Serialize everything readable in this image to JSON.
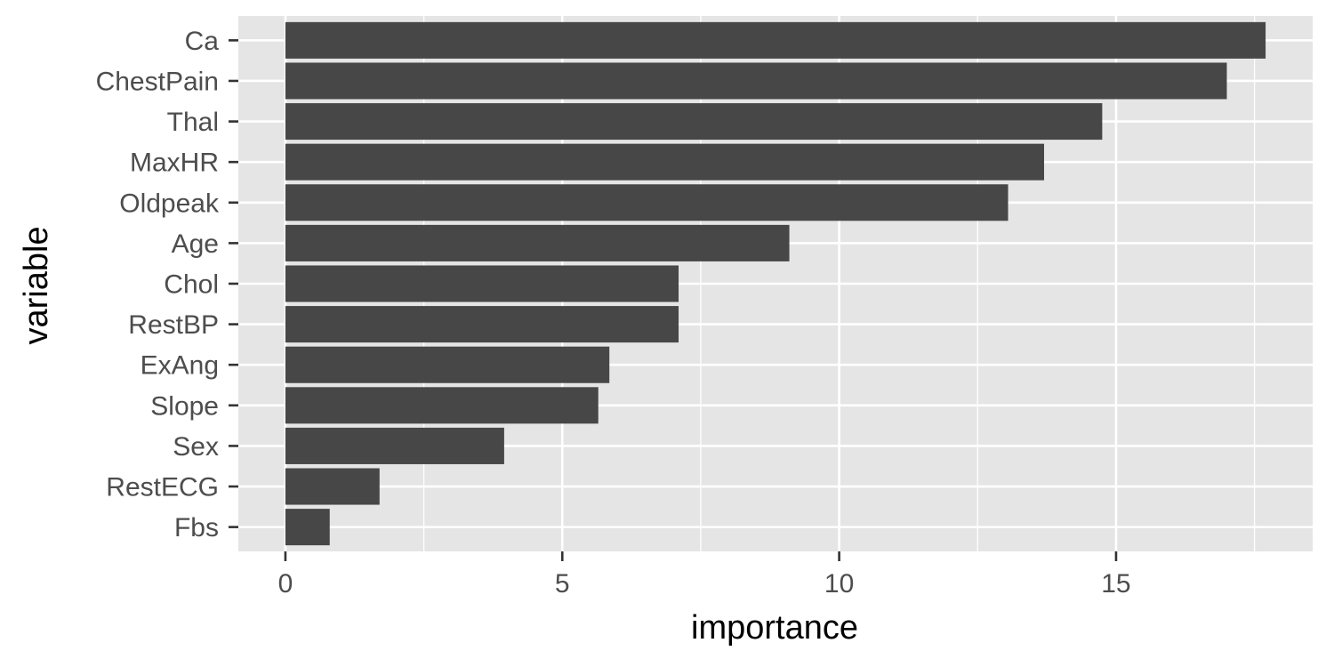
{
  "chart_data": {
    "type": "bar",
    "orientation": "horizontal",
    "title": "",
    "xlabel": "importance",
    "ylabel": "variable",
    "categories": [
      "Ca",
      "ChestPain",
      "Thal",
      "MaxHR",
      "Oldpeak",
      "Age",
      "Chol",
      "RestBP",
      "ExAng",
      "Slope",
      "Sex",
      "RestECG",
      "Fbs"
    ],
    "values": [
      17.7,
      17.0,
      14.75,
      13.7,
      13.05,
      9.1,
      7.1,
      7.1,
      5.85,
      5.65,
      3.95,
      1.7,
      0.8
    ],
    "xlim": [
      -0.85,
      18.55
    ],
    "xticks": [
      0,
      5,
      10,
      15
    ],
    "xtick_labels": [
      "0",
      "5",
      "10",
      "15"
    ],
    "grid": true,
    "colors": {
      "panel": "#e5e5e5",
      "grid": "#ffffff",
      "bar": "#474747",
      "tick": "#333333"
    }
  }
}
